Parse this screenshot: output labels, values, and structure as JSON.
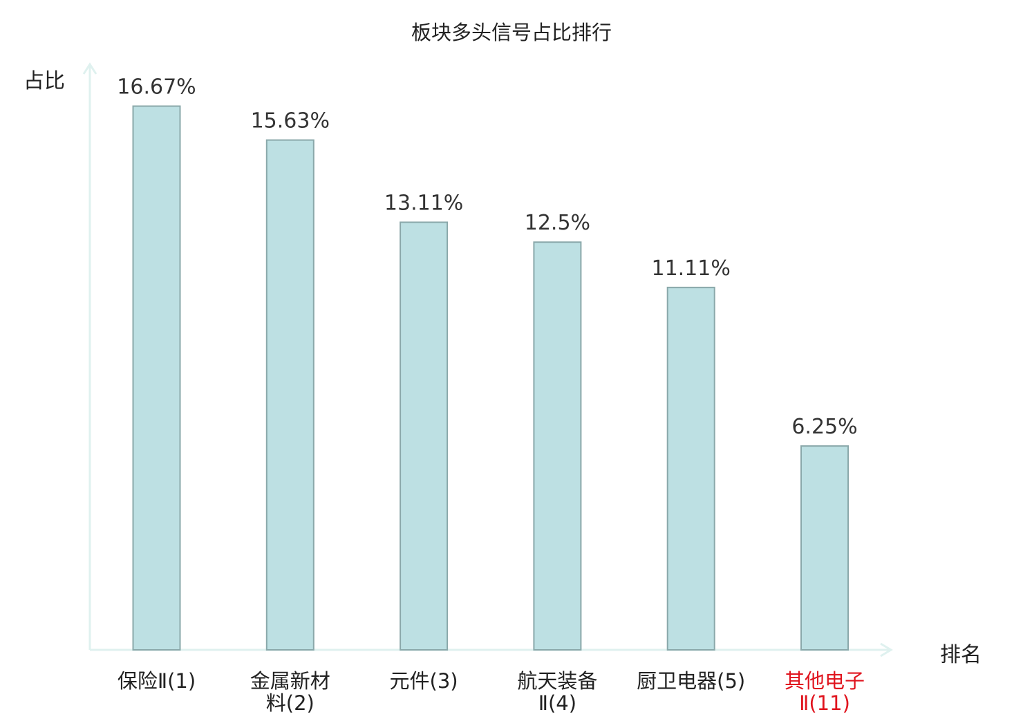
{
  "chart_data": {
    "type": "bar",
    "title": "板块多头信号占比排行",
    "ylabel": "占比",
    "xlabel": "排名",
    "categories": [
      [
        "保险Ⅱ(1)"
      ],
      [
        "金属新材",
        "料(2)"
      ],
      [
        "元件(3)"
      ],
      [
        "航天装备",
        "Ⅱ(4)"
      ],
      [
        "厨卫电器(5)"
      ],
      [
        "其他电子",
        "Ⅱ(11)"
      ]
    ],
    "values": [
      16.67,
      15.63,
      13.11,
      12.5,
      11.11,
      6.25
    ],
    "value_labels": [
      "16.67%",
      "15.63%",
      "13.11%",
      "12.5%",
      "11.11%",
      "6.25%"
    ],
    "highlighted_index": 5,
    "ylim": [
      0,
      18.5
    ],
    "grid": false,
    "legend": "none"
  },
  "colors": {
    "bar_fill": "#bde0e3",
    "bar_stroke": "#8aa8aa",
    "axis": "#dff1ef",
    "text": "#222222",
    "value_label": "#333333",
    "highlight_text": "#e0141e"
  }
}
